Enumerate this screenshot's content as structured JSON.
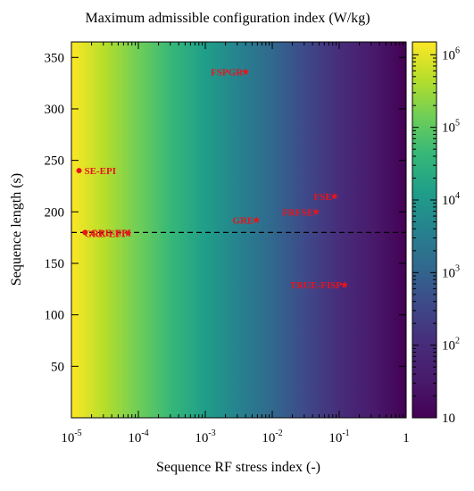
{
  "chart_data": {
    "type": "heatmap",
    "title": "Maximum admissible configuration index (W/kg)",
    "xlabel": "Sequence RF stress index (-)",
    "ylabel": "Sequence length (s)",
    "x_scale": "log",
    "xlim": [
      1e-05,
      1
    ],
    "ylim": [
      0,
      365
    ],
    "x_ticks": [
      {
        "value": 1e-05,
        "base": "10",
        "exp": "-5"
      },
      {
        "value": 0.0001,
        "base": "10",
        "exp": "-4"
      },
      {
        "value": 0.001,
        "base": "10",
        "exp": "-3"
      },
      {
        "value": 0.01,
        "base": "10",
        "exp": "-2"
      },
      {
        "value": 0.1,
        "base": "10",
        "exp": "-1"
      },
      {
        "value": 1,
        "base": "1",
        "exp": ""
      }
    ],
    "y_ticks": [
      50,
      100,
      150,
      200,
      250,
      300,
      350
    ],
    "colorbar": {
      "scale": "log",
      "range": [
        10,
        1500000
      ],
      "colormap": "viridis",
      "ticks": [
        {
          "value": 10,
          "base": "10",
          "exp": ""
        },
        {
          "value": 100,
          "base": "10",
          "exp": "2"
        },
        {
          "value": 1000,
          "base": "10",
          "exp": "3"
        },
        {
          "value": 10000,
          "base": "10",
          "exp": "4"
        },
        {
          "value": 100000,
          "base": "10",
          "exp": "5"
        },
        {
          "value": 1000000,
          "base": "10",
          "exp": "6"
        }
      ]
    },
    "reference_line": {
      "y": 180,
      "style": "dashed"
    },
    "points": [
      {
        "label": "FSPGR",
        "x": 0.004,
        "y": 336,
        "marker": "star"
      },
      {
        "label": "SE-EPI",
        "x": 1.3e-05,
        "y": 240,
        "marker": "dot"
      },
      {
        "label": "FSE",
        "x": 0.085,
        "y": 215,
        "marker": "star"
      },
      {
        "label": "FRFSE",
        "x": 0.045,
        "y": 200,
        "marker": "star"
      },
      {
        "label": "GRE",
        "x": 0.0058,
        "y": 192,
        "marker": "star"
      },
      {
        "label": "GRE-EPI",
        "x": 1.6e-05,
        "y": 180,
        "marker": "dot"
      },
      {
        "label": "GRE-EPI",
        "x": 7e-05,
        "y": 179,
        "marker": "star"
      },
      {
        "label": "TRUE-FISP",
        "x": 0.12,
        "y": 129,
        "marker": "star"
      }
    ],
    "grid": false,
    "legend": "none",
    "colors": {
      "points": "#e8141c",
      "reference_line": "#000000"
    }
  }
}
